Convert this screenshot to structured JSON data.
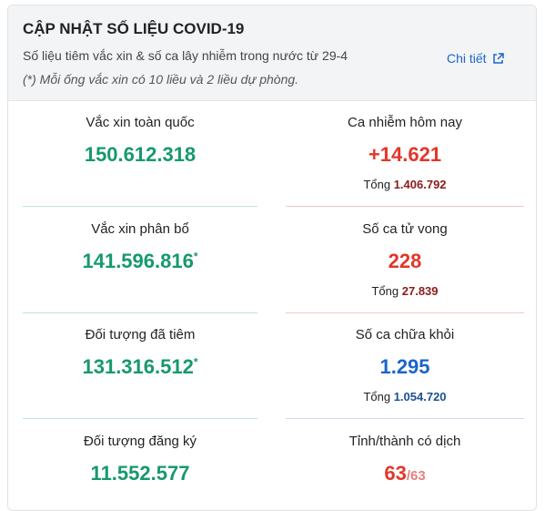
{
  "header": {
    "title": "CẬP NHẬT SỐ LIỆU COVID-19",
    "subtitle": "Số liệu tiêm vắc xin & số ca lây nhiễm trong nước từ 29-4",
    "note": "(*) Mỗi ống vắc xin có 10 liều và 2 liều dự phòng.",
    "detail_link": "Chi tiết",
    "detail_icon": "external-link-icon"
  },
  "left": [
    {
      "label": "Vắc xin toàn quốc",
      "value": "150.612.318",
      "asterisk": ""
    },
    {
      "label": "Vắc xin phân bổ",
      "value": "141.596.816",
      "asterisk": "*"
    },
    {
      "label": "Đối tượng đã tiêm",
      "value": "131.316.512",
      "asterisk": "*"
    },
    {
      "label": "Đối tượng đăng ký",
      "value": "11.552.577",
      "asterisk": ""
    }
  ],
  "right": {
    "infected": {
      "label": "Ca nhiễm hôm nay",
      "value": "+14.621",
      "total_label": "Tổng",
      "total": "1.406.792"
    },
    "deaths": {
      "label": "Số ca tử vong",
      "value": "228",
      "total_label": "Tổng",
      "total": "27.839"
    },
    "recovered": {
      "label": "Số ca chữa khỏi",
      "value": "1.295",
      "total_label": "Tổng",
      "total": "1.054.720"
    },
    "provinces": {
      "label": "Tỉnh/thành có dịch",
      "value": "63",
      "denominator": "/63"
    }
  },
  "colors": {
    "green": "#17996b",
    "red": "#e2372a",
    "blue": "#1a66c9",
    "header_bg": "#f3f4f6"
  }
}
